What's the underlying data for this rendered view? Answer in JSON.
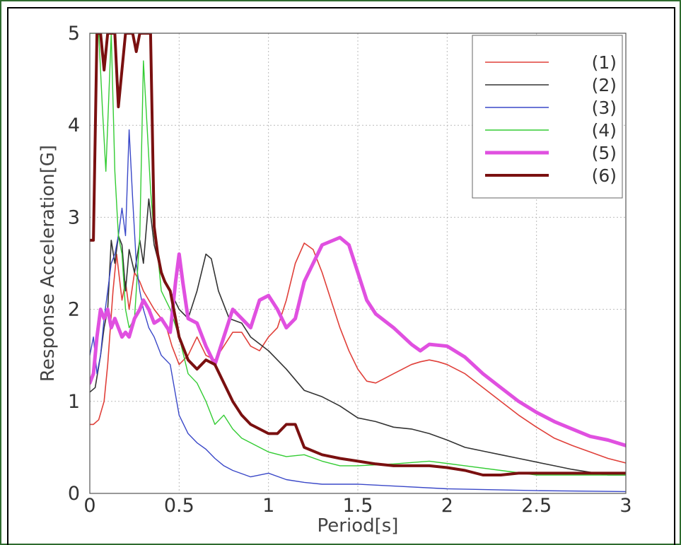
{
  "chart_data": {
    "type": "line",
    "title": "",
    "xlabel": "Period[s]",
    "ylabel": "Response Acceleration[G]",
    "xlim": [
      0,
      3
    ],
    "ylim": [
      0,
      5
    ],
    "xticks": [
      "0",
      "0.5",
      "1",
      "1.5",
      "2",
      "2.5",
      "3"
    ],
    "yticks": [
      "0",
      "1",
      "2",
      "3",
      "4",
      "5"
    ],
    "grid": true,
    "legend_position": "top-right",
    "series": [
      {
        "name": "(1)",
        "color": "#e0403a",
        "width": 1.6,
        "x": [
          0,
          0.02,
          0.05,
          0.08,
          0.1,
          0.13,
          0.15,
          0.18,
          0.2,
          0.22,
          0.25,
          0.28,
          0.3,
          0.33,
          0.36,
          0.4,
          0.43,
          0.46,
          0.5,
          0.55,
          0.6,
          0.65,
          0.7,
          0.75,
          0.8,
          0.85,
          0.9,
          0.95,
          1.0,
          1.05,
          1.1,
          1.15,
          1.2,
          1.25,
          1.3,
          1.35,
          1.4,
          1.45,
          1.5,
          1.55,
          1.6,
          1.65,
          1.7,
          1.75,
          1.8,
          1.85,
          1.9,
          1.95,
          2.0,
          2.1,
          2.2,
          2.3,
          2.4,
          2.5,
          2.6,
          2.7,
          2.8,
          2.9,
          3.0
        ],
        "y": [
          0.75,
          0.75,
          0.8,
          1.0,
          1.4,
          2.2,
          2.6,
          2.1,
          2.3,
          2.0,
          2.4,
          2.3,
          2.2,
          2.1,
          2.0,
          1.9,
          1.8,
          1.6,
          1.4,
          1.5,
          1.7,
          1.5,
          1.45,
          1.6,
          1.75,
          1.75,
          1.6,
          1.55,
          1.7,
          1.8,
          2.1,
          2.5,
          2.72,
          2.65,
          2.4,
          2.1,
          1.8,
          1.55,
          1.35,
          1.22,
          1.2,
          1.25,
          1.3,
          1.35,
          1.4,
          1.43,
          1.45,
          1.43,
          1.4,
          1.3,
          1.15,
          1.0,
          0.85,
          0.72,
          0.6,
          0.52,
          0.45,
          0.38,
          0.33
        ]
      },
      {
        "name": "(2)",
        "color": "#333333",
        "width": 1.6,
        "x": [
          0,
          0.03,
          0.06,
          0.08,
          0.1,
          0.12,
          0.14,
          0.16,
          0.18,
          0.2,
          0.22,
          0.25,
          0.28,
          0.3,
          0.33,
          0.36,
          0.4,
          0.45,
          0.5,
          0.55,
          0.6,
          0.65,
          0.68,
          0.72,
          0.78,
          0.85,
          0.9,
          1.0,
          1.1,
          1.2,
          1.3,
          1.4,
          1.5,
          1.6,
          1.7,
          1.8,
          1.9,
          2.0,
          2.1,
          2.2,
          2.3,
          2.4,
          2.5,
          2.6,
          2.7,
          2.8,
          2.9,
          3.0
        ],
        "y": [
          1.1,
          1.15,
          1.5,
          1.8,
          2.0,
          2.75,
          2.5,
          2.8,
          2.7,
          2.2,
          2.65,
          2.4,
          2.75,
          2.5,
          3.2,
          2.7,
          2.4,
          2.2,
          2.0,
          1.9,
          2.2,
          2.6,
          2.55,
          2.2,
          1.9,
          1.85,
          1.7,
          1.55,
          1.35,
          1.12,
          1.05,
          0.95,
          0.82,
          0.78,
          0.72,
          0.7,
          0.65,
          0.58,
          0.5,
          0.46,
          0.42,
          0.38,
          0.34,
          0.3,
          0.26,
          0.23,
          0.2,
          0.2
        ]
      },
      {
        "name": "(3)",
        "color": "#3a48c8",
        "width": 1.4,
        "x": [
          0,
          0.02,
          0.04,
          0.06,
          0.08,
          0.1,
          0.12,
          0.14,
          0.16,
          0.18,
          0.2,
          0.22,
          0.24,
          0.26,
          0.28,
          0.3,
          0.33,
          0.36,
          0.4,
          0.45,
          0.5,
          0.55,
          0.6,
          0.65,
          0.7,
          0.75,
          0.8,
          0.9,
          1.0,
          1.1,
          1.2,
          1.3,
          1.5,
          1.7,
          2.0,
          2.5,
          3.0
        ],
        "y": [
          1.5,
          1.7,
          1.3,
          1.5,
          1.9,
          2.2,
          2.5,
          2.6,
          2.8,
          3.1,
          2.8,
          3.95,
          3.2,
          2.5,
          2.2,
          2.0,
          1.8,
          1.7,
          1.5,
          1.4,
          0.85,
          0.65,
          0.55,
          0.48,
          0.38,
          0.3,
          0.25,
          0.18,
          0.22,
          0.15,
          0.12,
          0.1,
          0.1,
          0.08,
          0.05,
          0.03,
          0.02
        ]
      },
      {
        "name": "(4)",
        "color": "#33cc33",
        "width": 1.4,
        "x": [
          0,
          0.02,
          0.05,
          0.07,
          0.09,
          0.1,
          0.12,
          0.14,
          0.16,
          0.18,
          0.2,
          0.22,
          0.25,
          0.28,
          0.3,
          0.32,
          0.34,
          0.36,
          0.38,
          0.4,
          0.45,
          0.5,
          0.55,
          0.6,
          0.65,
          0.7,
          0.75,
          0.8,
          0.85,
          0.9,
          1.0,
          1.1,
          1.2,
          1.3,
          1.4,
          1.5,
          1.7,
          1.9,
          2.1,
          2.3,
          2.5,
          2.7,
          3.0
        ],
        "y": [
          5,
          5,
          5,
          4.2,
          3.5,
          4.0,
          5,
          3.5,
          2.8,
          2.6,
          2.0,
          1.8,
          1.9,
          2.8,
          4.7,
          4.0,
          3.3,
          2.8,
          2.6,
          2.2,
          2.0,
          1.7,
          1.3,
          1.2,
          1.0,
          0.75,
          0.85,
          0.7,
          0.6,
          0.55,
          0.45,
          0.4,
          0.42,
          0.35,
          0.3,
          0.3,
          0.32,
          0.35,
          0.3,
          0.25,
          0.2,
          0.2,
          0.2
        ]
      },
      {
        "name": "(5)",
        "color": "#e050e0",
        "width": 5,
        "x": [
          0,
          0.02,
          0.04,
          0.06,
          0.08,
          0.1,
          0.12,
          0.14,
          0.16,
          0.18,
          0.2,
          0.22,
          0.25,
          0.28,
          0.3,
          0.33,
          0.36,
          0.4,
          0.45,
          0.48,
          0.5,
          0.52,
          0.55,
          0.6,
          0.65,
          0.7,
          0.75,
          0.8,
          0.85,
          0.9,
          0.95,
          1.0,
          1.05,
          1.1,
          1.15,
          1.2,
          1.3,
          1.4,
          1.45,
          1.5,
          1.55,
          1.6,
          1.7,
          1.8,
          1.85,
          1.9,
          2.0,
          2.1,
          2.2,
          2.3,
          2.4,
          2.5,
          2.6,
          2.7,
          2.8,
          2.9,
          3.0
        ],
        "y": [
          1.2,
          1.3,
          1.7,
          2.0,
          1.9,
          2.0,
          1.8,
          1.9,
          1.8,
          1.7,
          1.75,
          1.7,
          1.9,
          2.0,
          2.1,
          2.0,
          1.85,
          1.9,
          1.75,
          2.3,
          2.6,
          2.3,
          1.9,
          1.85,
          1.6,
          1.4,
          1.7,
          2.0,
          1.9,
          1.8,
          2.1,
          2.15,
          2.0,
          1.8,
          1.9,
          2.3,
          2.7,
          2.78,
          2.7,
          2.4,
          2.1,
          1.95,
          1.8,
          1.62,
          1.55,
          1.62,
          1.6,
          1.48,
          1.3,
          1.15,
          1.0,
          0.88,
          0.78,
          0.7,
          0.62,
          0.58,
          0.52
        ]
      },
      {
        "name": "(6)",
        "color": "#7a1010",
        "width": 4,
        "x": [
          0,
          0.02,
          0.04,
          0.06,
          0.08,
          0.1,
          0.12,
          0.14,
          0.16,
          0.2,
          0.24,
          0.26,
          0.28,
          0.3,
          0.32,
          0.34,
          0.36,
          0.38,
          0.4,
          0.42,
          0.45,
          0.5,
          0.55,
          0.6,
          0.65,
          0.7,
          0.75,
          0.8,
          0.85,
          0.9,
          1.0,
          1.05,
          1.1,
          1.15,
          1.2,
          1.3,
          1.4,
          1.5,
          1.6,
          1.7,
          1.8,
          1.9,
          2.0,
          2.1,
          2.2,
          2.3,
          2.4,
          2.6,
          2.8,
          3.0
        ],
        "y": [
          2.75,
          2.75,
          5,
          5,
          4.6,
          5,
          5,
          5,
          4.2,
          5,
          5,
          4.8,
          5,
          5,
          5,
          5,
          2.9,
          2.6,
          2.4,
          2.3,
          2.2,
          1.7,
          1.45,
          1.35,
          1.45,
          1.4,
          1.2,
          1.0,
          0.85,
          0.75,
          0.65,
          0.65,
          0.75,
          0.75,
          0.5,
          0.42,
          0.38,
          0.35,
          0.32,
          0.3,
          0.3,
          0.3,
          0.28,
          0.25,
          0.2,
          0.2,
          0.22,
          0.22,
          0.22,
          0.22
        ]
      }
    ]
  }
}
